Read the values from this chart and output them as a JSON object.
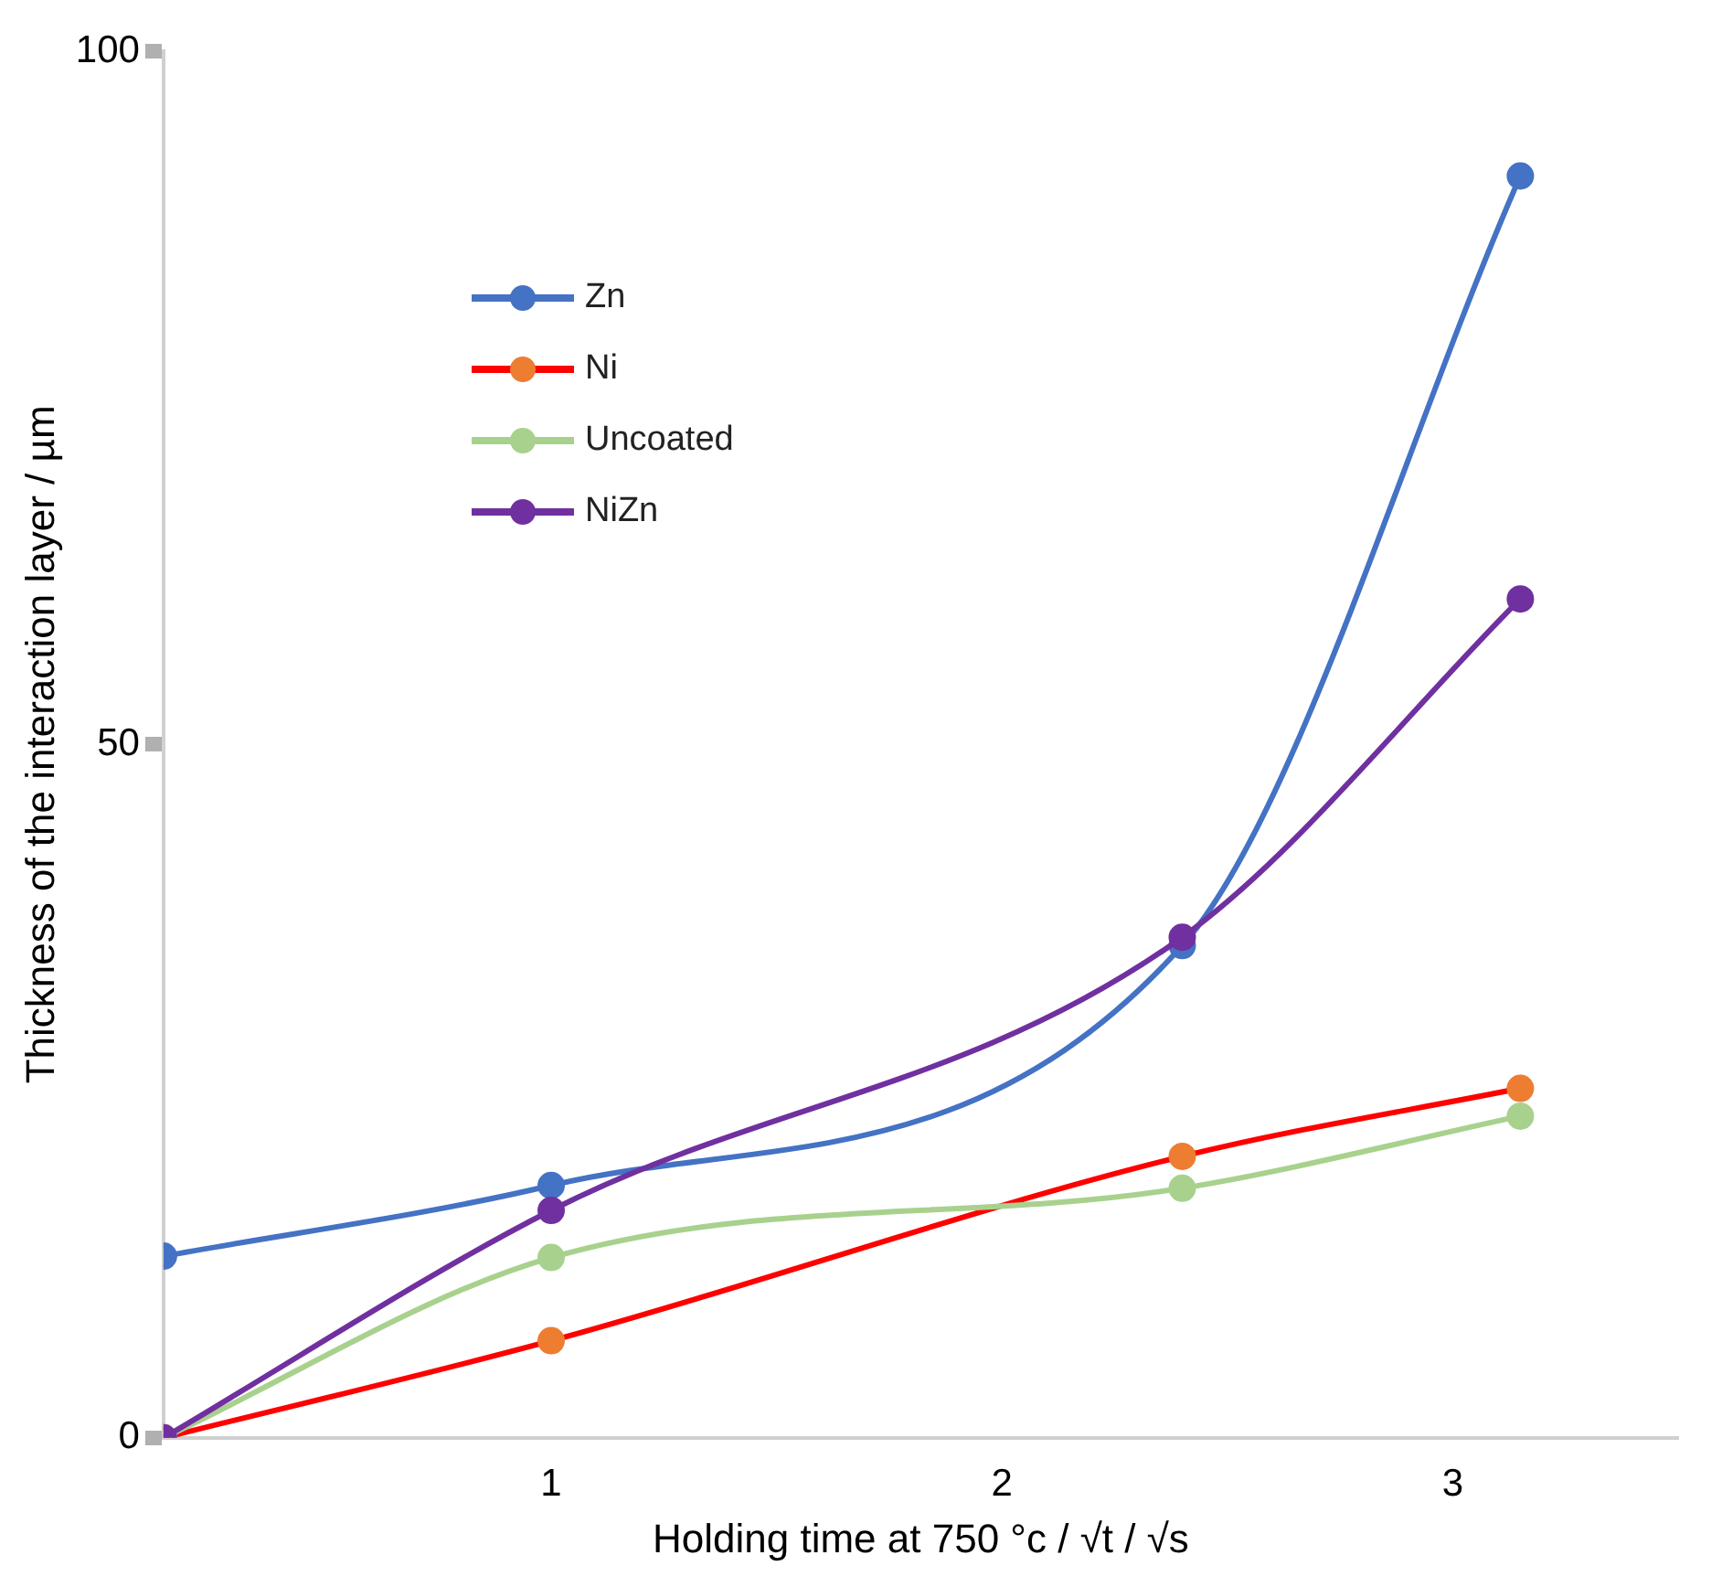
{
  "chart_data": {
    "type": "line",
    "xlabel": "Holding time at 750 °c / √t / √s",
    "ylabel": "Thickness of the interaction layer / µm",
    "x": [
      0.14,
      1,
      2.4,
      3.15
    ],
    "xlim": [
      0.14,
      3.5
    ],
    "xticks": [
      1,
      2,
      3
    ],
    "ylim": [
      0,
      100
    ],
    "yticks": [
      0,
      50,
      100
    ],
    "grid": false,
    "legend": "top left",
    "marker": "circle",
    "line_style": "solid",
    "series": [
      {
        "name": "Zn",
        "color": "#4472c4",
        "values": [
          13.1,
          18.2,
          35.5,
          91
        ]
      },
      {
        "name": "Ni",
        "color": "#ff0000",
        "values": [
          0,
          7,
          20.3,
          25.2
        ]
      },
      {
        "name": "Uncoated",
        "color": "#a9d18e",
        "values": [
          0,
          13,
          18,
          23.2
        ]
      },
      {
        "name": "NiZn",
        "color": "#7030a0",
        "values": [
          0,
          16.4,
          36.1,
          60.5
        ]
      }
    ]
  }
}
